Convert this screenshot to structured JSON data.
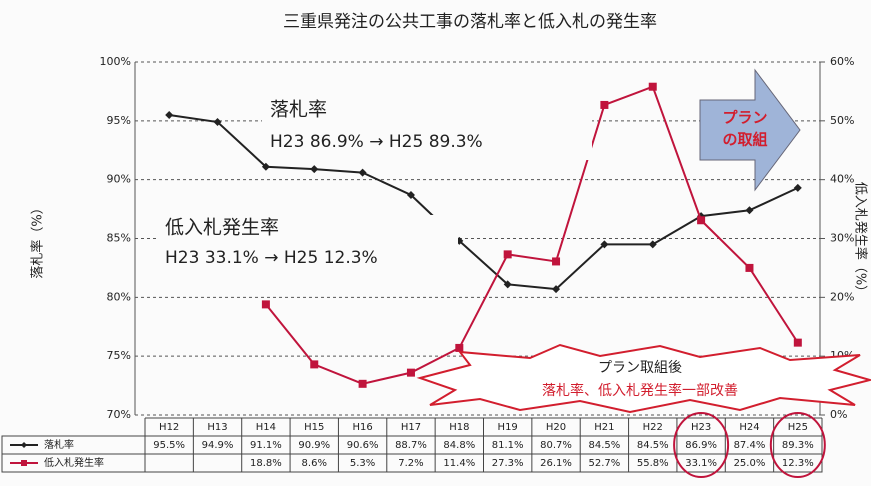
{
  "chart_data": {
    "type": "line",
    "title": "三重県発注の公共工事の落札率と低入札の発生率",
    "y_label": "落札率（%）",
    "y2_label": "低入札発生率（%）",
    "categories": [
      "H12",
      "H13",
      "H14",
      "H15",
      "H16",
      "H17",
      "H18",
      "H19",
      "H20",
      "H21",
      "H22",
      "H23",
      "H24",
      "H25"
    ],
    "series": [
      {
        "name": "落札率",
        "color": "#222222",
        "axis": "y",
        "values": [
          95.5,
          94.9,
          91.1,
          90.9,
          90.6,
          88.7,
          84.8,
          81.1,
          80.7,
          84.5,
          84.5,
          86.9,
          87.4,
          89.3
        ],
        "value_labels": [
          "95.5%",
          "94.9%",
          "91.1%",
          "90.9%",
          "90.6%",
          "88.7%",
          "84.8%",
          "81.1%",
          "80.7%",
          "84.5%",
          "84.5%",
          "86.9%",
          "87.4%",
          "89.3%"
        ]
      },
      {
        "name": "低入札発生率",
        "color": "#c0143c",
        "axis": "y2",
        "values": [
          null,
          null,
          18.8,
          8.6,
          5.3,
          7.2,
          11.4,
          27.3,
          26.1,
          52.7,
          55.8,
          33.1,
          25.0,
          12.3
        ],
        "value_labels": [
          null,
          null,
          "18.8%",
          "8.6%",
          "5.3%",
          "7.2%",
          "11.4%",
          "27.3%",
          "26.1%",
          "52.7%",
          "55.8%",
          "33.1%",
          "25.0%",
          "12.3%"
        ]
      }
    ],
    "ylim": [
      70,
      100
    ],
    "yticks": [
      {
        "value": 70,
        "label": "70%"
      },
      {
        "value": 75,
        "label": "75%"
      },
      {
        "value": 80,
        "label": "80%"
      },
      {
        "value": 85,
        "label": "85%"
      },
      {
        "value": 90,
        "label": "90%"
      },
      {
        "value": 95,
        "label": "95%"
      },
      {
        "value": 100,
        "label": "100%"
      }
    ],
    "y2lim": [
      0,
      60
    ],
    "y2ticks": [
      {
        "value": 0,
        "label": "0%"
      },
      {
        "value": 10,
        "label": "10%"
      },
      {
        "value": 20,
        "label": "20%"
      },
      {
        "value": 30,
        "label": "30%"
      },
      {
        "value": 40,
        "label": "40%"
      },
      {
        "value": 50,
        "label": "50%"
      },
      {
        "value": 60,
        "label": "60%"
      }
    ],
    "grid": true,
    "annotations": [
      {
        "title": "落札率",
        "text": "H23 86.9% → H25 89.3%"
      },
      {
        "title": "低入札発生率",
        "text": "H23 33.1% → H25 12.3%"
      },
      {
        "title": "プラン",
        "text": "の取組"
      },
      {
        "title": "プラン取組後",
        "text": "落札率、低入札発生率一部改善"
      }
    ]
  }
}
